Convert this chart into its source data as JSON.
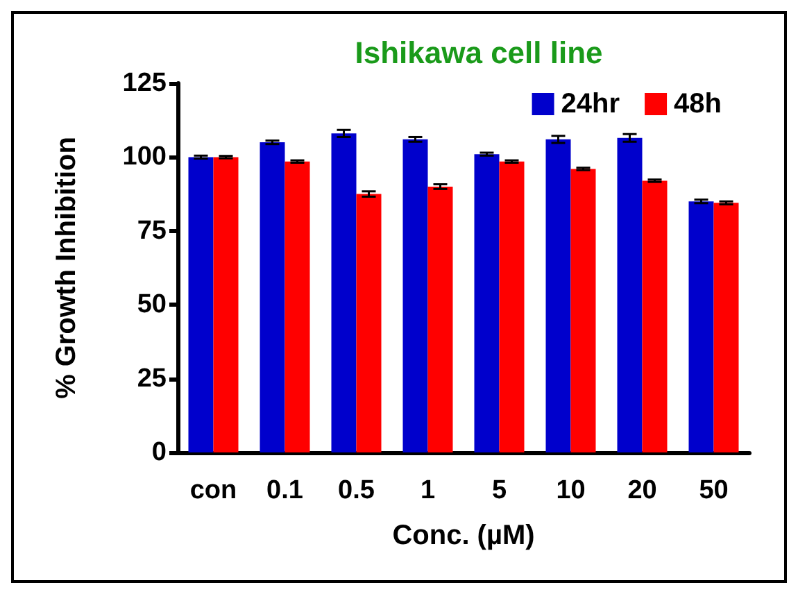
{
  "chart_data": {
    "type": "bar",
    "title": "Ishikawa cell line",
    "xlabel": "Conc. (µM)",
    "ylabel": "% Growth Inhibition",
    "categories": [
      "con",
      "0.1",
      "0.5",
      "1",
      "5",
      "10",
      "20",
      "50"
    ],
    "series": [
      {
        "name": "24hr",
        "color": "#0000cc",
        "values": [
          100,
          105,
          108,
          106,
          101,
          106,
          106.5,
          85
        ],
        "errors": [
          0.5,
          0.6,
          1.2,
          0.8,
          0.5,
          1.2,
          1.3,
          0.6
        ]
      },
      {
        "name": "48h",
        "color": "#ff0000",
        "values": [
          100,
          98.5,
          87.5,
          90,
          98.5,
          96,
          92,
          84.5
        ],
        "errors": [
          0.4,
          0.4,
          0.9,
          0.8,
          0.4,
          0.4,
          0.4,
          0.5
        ]
      }
    ],
    "ylim": [
      0,
      125
    ],
    "yticks": [
      0,
      25,
      50,
      75,
      100,
      125
    ],
    "grid": false,
    "legend": "top right"
  }
}
